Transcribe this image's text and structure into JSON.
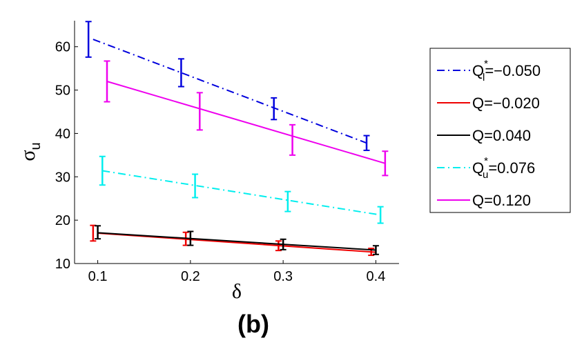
{
  "chart_data": {
    "type": "line",
    "caption": "(b)",
    "xlabel": "δ",
    "ylabel": {
      "main": "σ",
      "sub": "u"
    },
    "xlim": [
      0.075,
      0.425
    ],
    "ylim": [
      10,
      66
    ],
    "xticks": [
      {
        "value": 0.1,
        "label": "0.1"
      },
      {
        "value": 0.2,
        "label": "0.2"
      },
      {
        "value": 0.3,
        "label": "0.3"
      },
      {
        "value": 0.4,
        "label": "0.4"
      }
    ],
    "yticks": [
      {
        "value": 10,
        "label": "10"
      },
      {
        "value": 20,
        "label": "20"
      },
      {
        "value": 30,
        "label": "30"
      },
      {
        "value": 40,
        "label": "40"
      },
      {
        "value": 50,
        "label": "50"
      },
      {
        "value": 60,
        "label": "60"
      }
    ],
    "grid": false,
    "legend_position": "right",
    "series": [
      {
        "legend": {
          "main": "Q",
          "sub": "l",
          "sup": "*",
          "rest": "=−0.050"
        },
        "color": "#0000dd",
        "style": "dashdot",
        "fit": [
          [
            0.095,
            61.7
          ],
          [
            0.39,
            37.8
          ]
        ],
        "points": [
          {
            "x": 0.09,
            "y": 61.7,
            "err": 4.1
          },
          {
            "x": 0.19,
            "y": 54.0,
            "err": 3.2
          },
          {
            "x": 0.29,
            "y": 45.7,
            "err": 2.5
          },
          {
            "x": 0.39,
            "y": 37.8,
            "err": 1.7
          }
        ]
      },
      {
        "legend": {
          "main": "Q",
          "rest": "=−0.020"
        },
        "color": "#ee0000",
        "style": "solid",
        "fit": [
          [
            0.1,
            17.0
          ],
          [
            0.4,
            12.6
          ]
        ],
        "points": [
          {
            "x": 0.095,
            "y": 17.0,
            "err": 1.8
          },
          {
            "x": 0.195,
            "y": 15.7,
            "err": 1.5
          },
          {
            "x": 0.295,
            "y": 14.1,
            "err": 1.1
          },
          {
            "x": 0.395,
            "y": 12.7,
            "err": 0.8
          }
        ]
      },
      {
        "legend": {
          "main": "Q",
          "rest": "=0.040"
        },
        "color": "#000000",
        "style": "solid",
        "fit": [
          [
            0.1,
            17.1
          ],
          [
            0.4,
            13.1
          ]
        ],
        "points": [
          {
            "x": 0.1,
            "y": 17.2,
            "err": 1.5
          },
          {
            "x": 0.2,
            "y": 15.8,
            "err": 1.6
          },
          {
            "x": 0.3,
            "y": 14.4,
            "err": 1.2
          },
          {
            "x": 0.4,
            "y": 13.1,
            "err": 1.0
          }
        ]
      },
      {
        "legend": {
          "main": "Q",
          "sub": "u",
          "sup": "*",
          "rest": "=0.076"
        },
        "color": "#00eeee",
        "style": "dashdot",
        "fit": [
          [
            0.105,
            31.4
          ],
          [
            0.405,
            21.2
          ]
        ],
        "points": [
          {
            "x": 0.105,
            "y": 31.4,
            "err": 3.3
          },
          {
            "x": 0.205,
            "y": 27.9,
            "err": 2.7
          },
          {
            "x": 0.305,
            "y": 24.3,
            "err": 2.3
          },
          {
            "x": 0.405,
            "y": 21.2,
            "err": 1.9
          }
        ]
      },
      {
        "legend": {
          "main": "Q",
          "rest": "=0.120"
        },
        "color": "#ee00ee",
        "style": "solid",
        "fit": [
          [
            0.11,
            52.0
          ],
          [
            0.41,
            33.1
          ]
        ],
        "points": [
          {
            "x": 0.11,
            "y": 52.0,
            "err": 4.7
          },
          {
            "x": 0.21,
            "y": 45.1,
            "err": 4.3
          },
          {
            "x": 0.31,
            "y": 38.5,
            "err": 3.5
          },
          {
            "x": 0.41,
            "y": 33.1,
            "err": 2.8
          }
        ]
      }
    ]
  }
}
